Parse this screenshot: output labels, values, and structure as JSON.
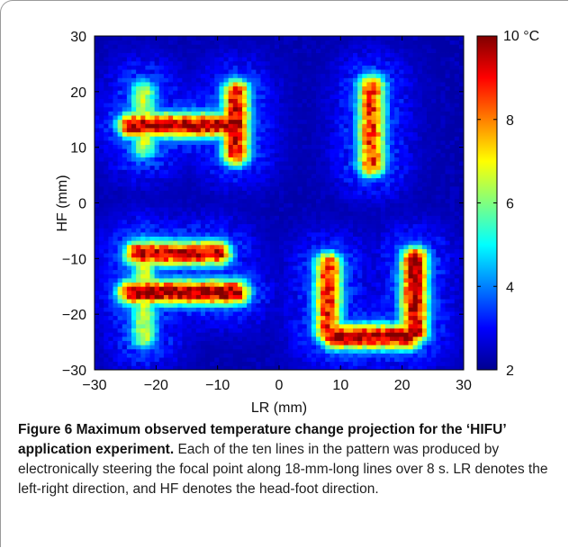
{
  "chart_data": {
    "type": "heatmap",
    "xlabel": "LR (mm)",
    "ylabel": "HF (mm)",
    "xlim": [
      -30,
      30
    ],
    "ylim": [
      -30,
      30
    ],
    "xticks": [
      -30,
      -20,
      -10,
      0,
      10,
      20,
      30
    ],
    "yticks": [
      -30,
      -20,
      -10,
      0,
      10,
      20,
      30
    ],
    "colorbar": {
      "min": 2,
      "max": 10,
      "ticks": [
        2,
        4,
        6,
        8
      ],
      "top_label": "10 °C",
      "colormap": "jet"
    },
    "background_value": 2.3,
    "segments": [
      {
        "x1": -24,
        "y1": 14,
        "x2": -7,
        "y2": 14,
        "peak": 9.8,
        "letter": "H"
      },
      {
        "x1": -22,
        "y1": 10,
        "x2": -22,
        "y2": 20,
        "peak": 6.5,
        "letter": "H"
      },
      {
        "x1": -7,
        "y1": 9,
        "x2": -7,
        "y2": 20,
        "peak": 9.5,
        "letter": "H"
      },
      {
        "x1": 15,
        "y1": 7,
        "x2": 15,
        "y2": 21,
        "peak": 8.8,
        "letter": "I"
      },
      {
        "x1": -22,
        "y1": -24,
        "x2": -22,
        "y2": -8,
        "peak": 6.5,
        "letter": "F"
      },
      {
        "x1": -23,
        "y1": -9,
        "x2": -10,
        "y2": -9,
        "peak": 9.6,
        "letter": "F"
      },
      {
        "x1": -24,
        "y1": -16,
        "x2": -7,
        "y2": -16,
        "peak": 10,
        "letter": "F"
      },
      {
        "x1": 8,
        "y1": -23,
        "x2": 8,
        "y2": -11,
        "peak": 9.0,
        "letter": "U"
      },
      {
        "x1": 22,
        "y1": -23,
        "x2": 22,
        "y2": -10,
        "peak": 9.8,
        "letter": "U"
      },
      {
        "x1": 9,
        "y1": -24,
        "x2": 21,
        "y2": -24,
        "peak": 10,
        "letter": "U"
      }
    ]
  },
  "caption": {
    "label": "Figure 6",
    "title": "Maximum observed temperature change projection for the ‘HIFU’ application experiment.",
    "body": "Each of the ten lines in the pattern was produced by electronically steering the focal point along 18-mm-long lines over 8 s. LR denotes the left-right direction, and HF denotes the head-foot direction."
  }
}
